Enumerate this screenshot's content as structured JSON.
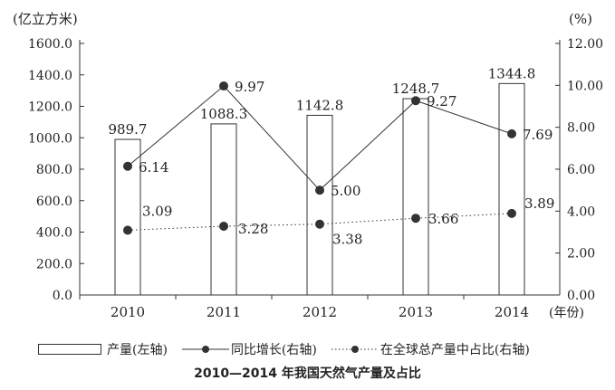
{
  "chart_data": {
    "type": "bar",
    "title": "2010—2014 年我国天然气产量及占比",
    "categories": [
      "2010",
      "2011",
      "2012",
      "2013",
      "2014"
    ],
    "x_unit": "(年份)",
    "y_left": {
      "unit": "(亿立方米)",
      "range": [
        0,
        1600
      ],
      "ticks": [
        "0.0",
        "200.0",
        "400.0",
        "600.0",
        "800.0",
        "1000.0",
        "1200.0",
        "1400.0",
        "1600.0"
      ]
    },
    "y_right": {
      "unit": "(%)",
      "range": [
        0,
        12
      ],
      "ticks": [
        "0.00",
        "2.00",
        "4.00",
        "6.00",
        "8.00",
        "10.00",
        "12.00"
      ]
    },
    "series": [
      {
        "name": "产量(左轴)",
        "type": "bar",
        "axis": "left",
        "values": [
          989.7,
          1088.3,
          1142.8,
          1248.7,
          1344.8
        ],
        "labels": [
          "989.7",
          "1088.3",
          "1142.8",
          "1248.7",
          "1344.8"
        ]
      },
      {
        "name": "同比增长(右轴)",
        "type": "line",
        "axis": "right",
        "values": [
          6.14,
          9.97,
          5.0,
          9.27,
          7.69
        ],
        "labels": [
          "6.14",
          "9.97",
          "5.00",
          "9.27",
          "7.69"
        ]
      },
      {
        "name": "在全球总产量中占比(右轴)",
        "type": "line-dotted",
        "axis": "right",
        "values": [
          3.09,
          3.28,
          3.38,
          3.66,
          3.89
        ],
        "labels": [
          "3.09",
          "3.28",
          "3.38",
          "3.66",
          "3.89"
        ]
      }
    ],
    "legend_position": "bottom",
    "grid": false
  },
  "legend": {
    "bar_label": "产量(左轴)",
    "growth_label": "同比增长(右轴)",
    "share_label": "在全球总产量中占比(右轴)"
  },
  "caption": "2010—2014 年我国天然气产量及占比",
  "colors": {
    "axis": "#333333",
    "marker": "#333333",
    "bar_fill": "#ffffff"
  }
}
